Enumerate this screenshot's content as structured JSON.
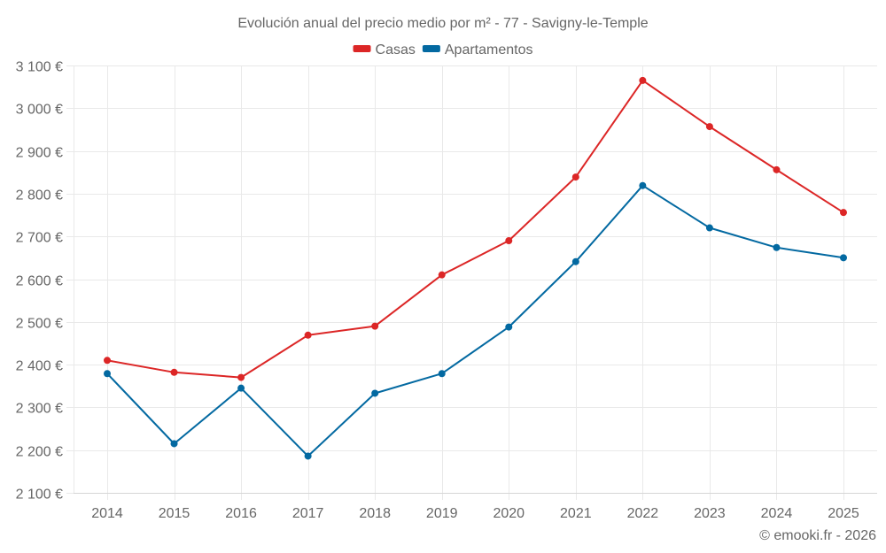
{
  "chart_data": {
    "type": "line",
    "title": "Evolución anual del precio medio por m² - 77 - Savigny-le-Temple",
    "xlabel": "",
    "ylabel": "",
    "x": [
      "2014",
      "2015",
      "2016",
      "2017",
      "2018",
      "2019",
      "2020",
      "2021",
      "2022",
      "2023",
      "2024",
      "2025"
    ],
    "ylim": [
      2100,
      3100
    ],
    "yticks": [
      2100,
      2200,
      2300,
      2400,
      2500,
      2600,
      2700,
      2800,
      2900,
      3000,
      3100
    ],
    "ytick_labels": [
      "2 100 €",
      "2 200 €",
      "2 300 €",
      "2 400 €",
      "2 500 €",
      "2 600 €",
      "2 700 €",
      "2 800 €",
      "2 900 €",
      "3 000 €",
      "3 100 €"
    ],
    "grid": true,
    "legend_position": "top-center",
    "series": [
      {
        "name": "Casas",
        "color": "#dc2626",
        "values": [
          2410,
          2382,
          2370,
          2469,
          2490,
          2610,
          2690,
          2839,
          3065,
          2957,
          2856,
          2756
        ]
      },
      {
        "name": "Apartamentos",
        "color": "#0369a1",
        "values": [
          2379,
          2215,
          2345,
          2186,
          2333,
          2379,
          2488,
          2641,
          2819,
          2720,
          2674,
          2650
        ]
      }
    ],
    "credit": "© emooki.fr - 2026"
  }
}
